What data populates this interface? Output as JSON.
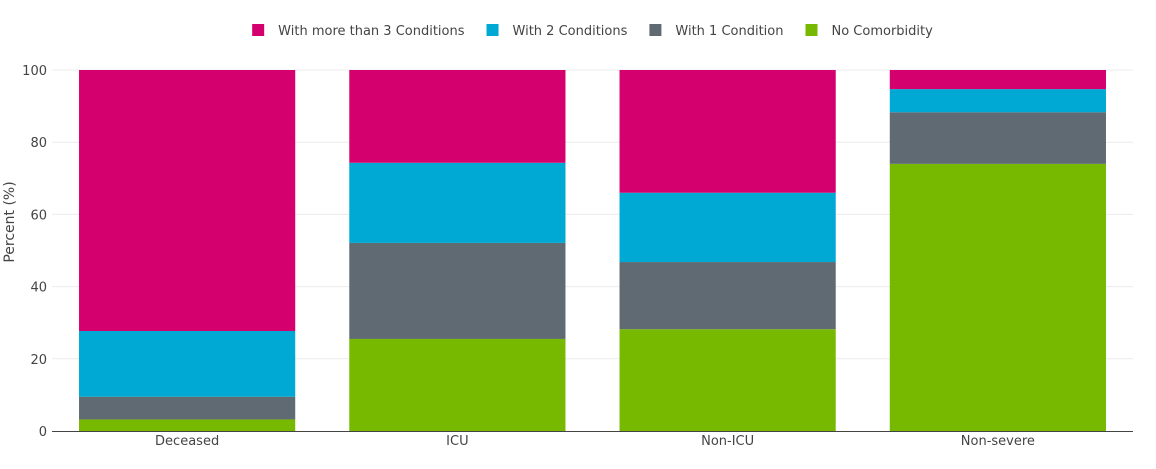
{
  "chart_data": {
    "type": "bar",
    "stacked": true,
    "categories": [
      "Deceased",
      "ICU",
      "Non-ICU",
      "Non-severe"
    ],
    "series": [
      {
        "name": "No Comorbidity",
        "color": "#77b900",
        "values": [
          3.2,
          25.5,
          28.2,
          74.0
        ]
      },
      {
        "name": "With 1 Condition",
        "color": "#5f6a72",
        "values": [
          6.3,
          26.6,
          18.6,
          14.3
        ]
      },
      {
        "name": "With 2 Conditions",
        "color": "#00a9d4",
        "values": [
          18.2,
          22.2,
          19.2,
          6.4
        ]
      },
      {
        "name": "With more than 3 Conditions",
        "color": "#d4006e",
        "values": [
          72.3,
          25.7,
          34.0,
          5.3
        ]
      }
    ],
    "legend_order": [
      "With more than 3 Conditions",
      "With 2 Conditions",
      "With 1 Condition",
      "No Comorbidity"
    ],
    "ylabel": "Percent (%)",
    "xlabel": "",
    "ylim": [
      0,
      100
    ],
    "yticks": [
      0,
      20,
      40,
      60,
      80,
      100
    ],
    "grid": true,
    "legend_position": "top-center"
  }
}
